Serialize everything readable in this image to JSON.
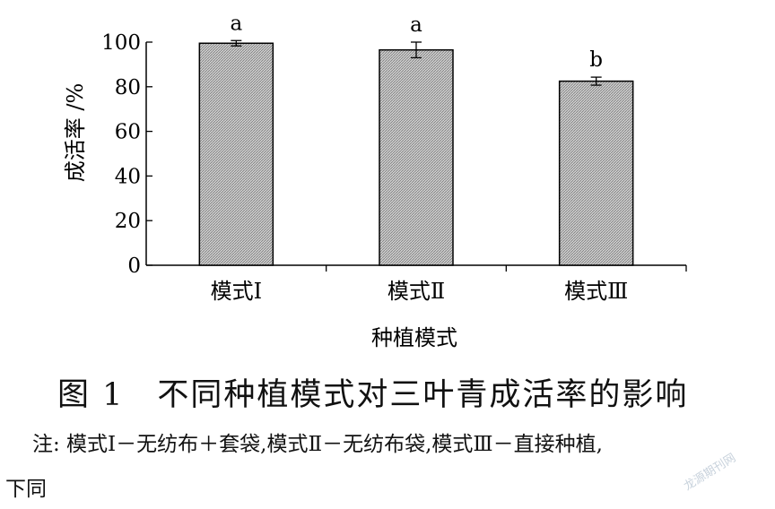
{
  "chart_data": {
    "type": "bar",
    "categories": [
      "模式Ⅰ",
      "模式Ⅱ",
      "模式Ⅲ"
    ],
    "values": [
      99.5,
      96.5,
      82.5
    ],
    "errors": [
      1.2,
      3.5,
      1.8
    ],
    "significance": [
      "a",
      "a",
      "b"
    ],
    "xlabel": "种植模式",
    "ylabel": "成活率 /%",
    "ylim": [
      0,
      100
    ],
    "yticks": [
      0,
      20,
      40,
      60,
      80,
      100
    ],
    "grid": false,
    "bar_fill": "hatched gray"
  },
  "caption": "图 1　不同种植模式对三叶青成活率的影响",
  "note_line1": "注: 模式Ⅰ－无纺布＋套袋,模式Ⅱ－无纺布袋,模式Ⅲ－直接种植,",
  "note_line2": "下同",
  "watermark": "龙源期刊网"
}
